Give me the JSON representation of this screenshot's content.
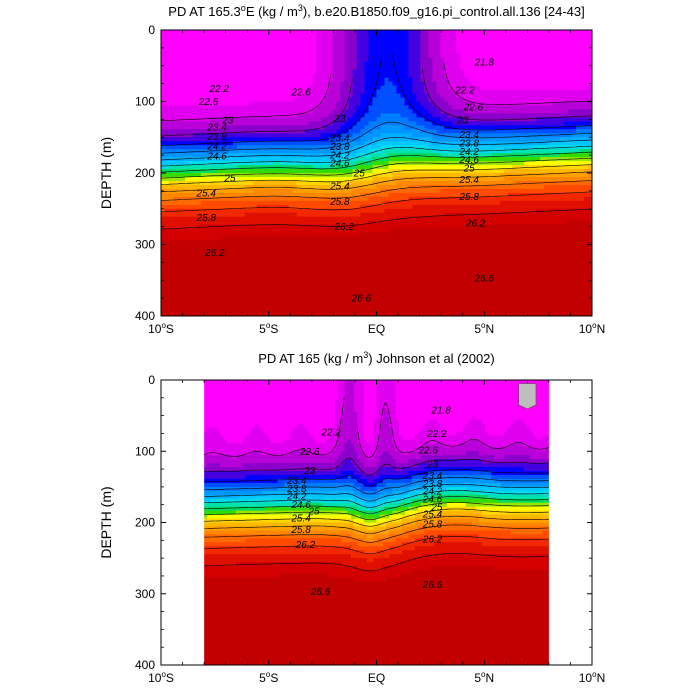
{
  "chart_data": [
    {
      "type": "contour",
      "title_pre": "PD AT 165.3",
      "title_deg": "o",
      "title_mid": "E (kg / m",
      "title_exp": "3",
      "title_post": "), b.e20.B1850.f09_g16.pi_control.all.136 [24-43]",
      "ylabel": "DEPTH (m)",
      "x_ticks": [
        {
          "x": -10,
          "label": "10",
          "sup": "o",
          "hemi": "S"
        },
        {
          "x": -5,
          "label": "5",
          "sup": "o",
          "hemi": "S"
        },
        {
          "x": 0,
          "label": "EQ",
          "sup": "",
          "hemi": ""
        },
        {
          "x": 5,
          "label": "5",
          "sup": "o",
          "hemi": "N"
        },
        {
          "x": 10,
          "label": "10",
          "sup": "o",
          "hemi": "N"
        }
      ],
      "y_ticks": [
        0,
        100,
        200,
        300,
        400
      ],
      "xlim": [
        -10,
        10
      ],
      "ylim": [
        0,
        400
      ],
      "data_xlim": [
        -10,
        10
      ],
      "mask_extent": null,
      "contour_levels": [
        21.8,
        22.2,
        22.6,
        23,
        23.4,
        23.8,
        24.2,
        24.6,
        25,
        25.4,
        25.8,
        26.2,
        26.6
      ],
      "labels": [
        {
          "x": 5.0,
          "z": 45,
          "text": "21.8"
        },
        {
          "x": -7.3,
          "z": 82,
          "text": "22.2"
        },
        {
          "x": -7.8,
          "z": 100,
          "text": "22.6"
        },
        {
          "x": -3.5,
          "z": 87,
          "text": "22.6"
        },
        {
          "x": 4.1,
          "z": 84,
          "text": "22.2"
        },
        {
          "x": 4.5,
          "z": 108,
          "text": "22.6"
        },
        {
          "x": -6.9,
          "z": 126,
          "text": "23"
        },
        {
          "x": -1.7,
          "z": 124,
          "text": "23"
        },
        {
          "x": 4.0,
          "z": 126,
          "text": "23"
        },
        {
          "x": -7.4,
          "z": 136,
          "text": "23.4"
        },
        {
          "x": -7.4,
          "z": 149,
          "text": "23.8"
        },
        {
          "x": -7.4,
          "z": 162,
          "text": "24.2"
        },
        {
          "x": -7.4,
          "z": 176,
          "text": "24.6"
        },
        {
          "x": -1.7,
          "z": 151,
          "text": "23.4"
        },
        {
          "x": -1.7,
          "z": 163,
          "text": "23.8"
        },
        {
          "x": -1.7,
          "z": 175,
          "text": "24.2"
        },
        {
          "x": -1.7,
          "z": 186,
          "text": "24.6"
        },
        {
          "x": 4.3,
          "z": 146,
          "text": "23.4"
        },
        {
          "x": 4.3,
          "z": 158,
          "text": "23.8"
        },
        {
          "x": 4.3,
          "z": 170,
          "text": "24.2"
        },
        {
          "x": 4.3,
          "z": 181,
          "text": "24.6"
        },
        {
          "x": 4.3,
          "z": 193,
          "text": "25"
        },
        {
          "x": -6.8,
          "z": 207,
          "text": "25"
        },
        {
          "x": -0.8,
          "z": 200,
          "text": "25"
        },
        {
          "x": -7.9,
          "z": 228,
          "text": "25.4"
        },
        {
          "x": -1.7,
          "z": 218,
          "text": "25.4"
        },
        {
          "x": 4.3,
          "z": 209,
          "text": "25.4"
        },
        {
          "x": -7.9,
          "z": 262,
          "text": "25.8"
        },
        {
          "x": -1.7,
          "z": 240,
          "text": "25.8"
        },
        {
          "x": 4.3,
          "z": 233,
          "text": "25.8"
        },
        {
          "x": -1.5,
          "z": 275,
          "text": "26.2"
        },
        {
          "x": 4.6,
          "z": 270,
          "text": "26.2"
        },
        {
          "x": -7.5,
          "z": 311,
          "text": "26.2"
        },
        {
          "x": 5.0,
          "z": 347,
          "text": "26.6"
        },
        {
          "x": -0.7,
          "z": 375,
          "text": "26.6"
        }
      ]
    },
    {
      "type": "contour",
      "title_pre": "PD AT 165 (kg / m",
      "title_deg": "",
      "title_mid": "",
      "title_exp": "3",
      "title_post": ") Johnson et al (2002)",
      "ylabel": "DEPTH (m)",
      "x_ticks": [
        {
          "x": -10,
          "label": "10",
          "sup": "o",
          "hemi": "S"
        },
        {
          "x": -5,
          "label": "5",
          "sup": "o",
          "hemi": "S"
        },
        {
          "x": 0,
          "label": "EQ",
          "sup": "",
          "hemi": ""
        },
        {
          "x": 5,
          "label": "5",
          "sup": "o",
          "hemi": "N"
        },
        {
          "x": 10,
          "label": "10",
          "sup": "o",
          "hemi": "N"
        }
      ],
      "y_ticks": [
        0,
        100,
        200,
        300,
        400
      ],
      "xlim": [
        -10,
        10
      ],
      "ylim": [
        0,
        400
      ],
      "data_xlim": [
        -8,
        8
      ],
      "mask_extent": {
        "x0": 6.6,
        "x1": 7.4,
        "z0": 5,
        "z1": 35
      },
      "contour_levels": [
        21.8,
        22.2,
        22.6,
        23,
        23.4,
        23.8,
        24.2,
        24.6,
        25,
        25.4,
        25.8,
        26.2,
        26.6
      ],
      "labels": [
        {
          "x": 3.0,
          "z": 42,
          "text": "21.8"
        },
        {
          "x": -2.1,
          "z": 73,
          "text": "22.2"
        },
        {
          "x": 2.8,
          "z": 75,
          "text": "22.2"
        },
        {
          "x": -3.1,
          "z": 100,
          "text": "22.6"
        },
        {
          "x": 2.4,
          "z": 98,
          "text": "22.6"
        },
        {
          "x": -3.1,
          "z": 127,
          "text": "23"
        },
        {
          "x": 2.6,
          "z": 118,
          "text": "23"
        },
        {
          "x": -3.7,
          "z": 141,
          "text": "23.4"
        },
        {
          "x": -3.7,
          "z": 152,
          "text": "23.8"
        },
        {
          "x": -3.7,
          "z": 163,
          "text": "24.2"
        },
        {
          "x": -3.5,
          "z": 175,
          "text": "24.6"
        },
        {
          "x": -2.9,
          "z": 184,
          "text": "25"
        },
        {
          "x": 2.6,
          "z": 134,
          "text": "23.4"
        },
        {
          "x": 2.6,
          "z": 145,
          "text": "23.8"
        },
        {
          "x": 2.6,
          "z": 156,
          "text": "24.2"
        },
        {
          "x": 2.6,
          "z": 167,
          "text": "24.6"
        },
        {
          "x": 2.8,
          "z": 178,
          "text": "25"
        },
        {
          "x": -3.5,
          "z": 194,
          "text": "25.4"
        },
        {
          "x": -3.5,
          "z": 210,
          "text": "25.8"
        },
        {
          "x": 2.6,
          "z": 188,
          "text": "25.4"
        },
        {
          "x": 2.6,
          "z": 202,
          "text": "25.8"
        },
        {
          "x": -3.3,
          "z": 231,
          "text": "26.2"
        },
        {
          "x": 2.6,
          "z": 223,
          "text": "26.2"
        },
        {
          "x": -2.6,
          "z": 297,
          "text": "26.6"
        },
        {
          "x": 2.6,
          "z": 287,
          "text": "26.6"
        }
      ]
    }
  ],
  "colors": {
    "mask_gray": "#bdbdbd",
    "palette": [
      "#ff00ff",
      "#e000ef",
      "#b800d8",
      "#8c00cc",
      "#4400e0",
      "#0000ff",
      "#0050ff",
      "#007cff",
      "#0096ff",
      "#00b0ff",
      "#00c8ff",
      "#00dcea",
      "#00e2b0",
      "#00dc60",
      "#32dc00",
      "#9ae600",
      "#ffff00",
      "#ffd800",
      "#ffb800",
      "#ffa000",
      "#ff8800",
      "#ff6a00",
      "#ff4a00",
      "#f22800",
      "#e01000",
      "#d20000",
      "#c20000"
    ]
  }
}
